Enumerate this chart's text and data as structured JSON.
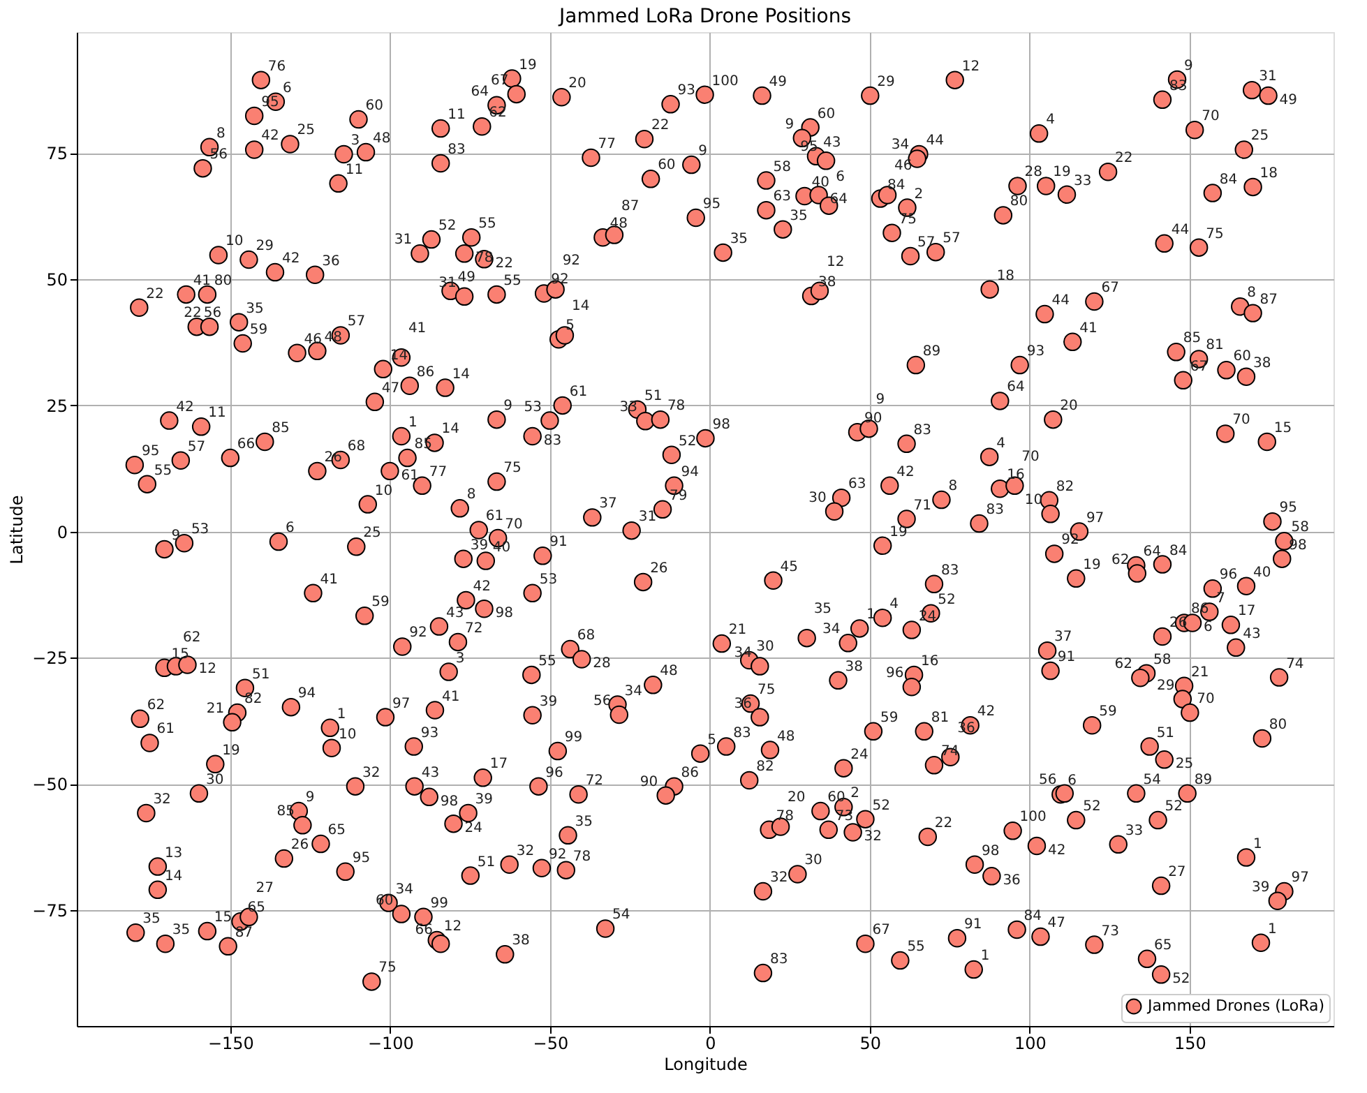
{
  "chart_data": {
    "type": "scatter",
    "title": "Jammed LoRa Drone Positions",
    "xlabel": "Longitude",
    "ylabel": "Latitude",
    "xlim": [
      -198,
      195
    ],
    "ylim": [
      -98,
      99
    ],
    "xticks": [
      -150,
      -100,
      -50,
      0,
      50,
      100,
      150
    ],
    "yticks": [
      -75,
      -50,
      -25,
      0,
      25,
      50,
      75
    ],
    "grid": true,
    "legend": "bottom right",
    "marker": "circle",
    "series": [
      {
        "name": "Jammed Drones (LoRa)",
        "color": "#fa8072",
        "x": [
          -140.4,
          -135.8,
          -142.5,
          -156.5,
          -158.6,
          -142.5,
          -131.3,
          -109.9,
          -114.5,
          -107.6,
          -116.2,
          -84.2,
          -84.2,
          -71.3,
          -61.9,
          -60.5,
          -66.7,
          -46.4,
          -12.3,
          -20.5,
          -37.2,
          -18.5,
          -5.8,
          -4.4,
          -33.5,
          -29.9,
          -87.1,
          -90.7,
          -74.6,
          -76.8,
          -70.6,
          -153.7,
          -144.2,
          -136.0,
          -123.5,
          -178.5,
          -163.8,
          -157.2,
          -160.5,
          -156.5,
          -147.3,
          -146.1,
          -129.1,
          -122.8,
          -115.5,
          -81.1,
          -76.8,
          -66.7,
          -51.9,
          -48.3,
          -47.3,
          -45.4,
          -102.2,
          -96.5,
          -104.8,
          -93.9,
          -82.8,
          -66.7,
          -46.1,
          -50.1,
          -55.5,
          -22.7,
          -20.2,
          -15.5,
          -12.0,
          -11.2,
          -14.8,
          -36.8,
          -24.5,
          -169.1,
          -159.1,
          -139.2,
          -150.0,
          -179.9,
          -165.5,
          -176.0,
          -122.8,
          -115.5,
          -96.5,
          -86.1,
          -94.6,
          -100.1,
          -107.0,
          -90.0,
          -66.7,
          -78.2,
          -72.3,
          -66.3,
          -170.6,
          -164.4,
          -134.9,
          -110.6,
          -77.1,
          -70.1,
          -52.3,
          -124.1,
          -108.0,
          -20.9,
          -55.5,
          -76.3,
          -70.6,
          -84.7,
          -96.2,
          -78.8,
          -170.6,
          -167.0,
          -163.4,
          -145.4,
          -147.8,
          -149.4,
          -131.0,
          -178.2,
          -175.2,
          -118.8,
          -118.3,
          -101.5,
          -86.0,
          -92.6,
          -81.7,
          -55.8,
          -43.7,
          -40.1,
          -17.8,
          -28.9,
          -28.4,
          -55.5,
          -47.6,
          -154.7,
          -159.8,
          -176.3,
          -110.9,
          -92.4,
          -87.8,
          -71.0,
          -53.6,
          -41.1,
          -11.2,
          -13.8,
          -3.0,
          -128.6,
          -127.4,
          -121.7,
          -133.2,
          -114.0,
          -75.6,
          -80.2,
          -44.4,
          -74.9,
          -62.7,
          -52.6,
          -45.0,
          -172.7,
          -172.7,
          -100.5,
          -96.5,
          -89.6,
          -85.4,
          -84.2,
          -64.1,
          -32.7,
          -105.8,
          -179.6,
          -170.3,
          -157.2,
          -150.7,
          -146.8,
          -144.2,
          -1.6,
          16.3,
          50.1,
          76.6,
          31.4,
          28.8,
          33.2,
          36.3,
          65.4,
          64.8,
          17.6,
          17.6,
          29.6,
          34.0,
          37.2,
          22.8,
          4.1,
          53.3,
          55.5,
          61.7,
          56.9,
          62.7,
          70.6,
          31.7,
          34.3,
          96.2,
          105.1,
          111.6,
          124.5,
          91.7,
          102.9,
          146.1,
          141.5,
          151.6,
          169.5,
          174.6,
          167.0,
          157.2,
          169.8,
          142.1,
          152.9,
          87.5,
          104.7,
          120.2,
          113.4,
          165.8,
          169.8,
          145.8,
          152.9,
          148.0,
          161.5,
          167.7,
          64.4,
          96.9,
          90.7,
          107.3,
          161.2,
          174.2,
          -1.4,
          46.1,
          49.7,
          61.5,
          87.4,
          41.1,
          38.9,
          56.2,
          72.4,
          61.5,
          90.7,
          95.3,
          106.1,
          106.5,
          84.2,
          115.5,
          175.9,
          179.6,
          178.9,
          54.0,
          107.7,
          114.5,
          133.3,
          133.6,
          141.5,
          19.8,
          70.1,
          69.1,
          63.1,
          54.0,
          46.8,
          43.2,
          30.3,
          3.7,
          12.3,
          15.6,
          40.1,
          63.8,
          63.1,
          12.7,
          15.6,
          51.1,
          67.0,
          81.4,
          70.1,
          75.2,
          5.1,
          18.8,
          12.3,
          41.8,
          34.6,
          41.8,
          37.1,
          18.5,
          22.1,
          48.6,
          44.7,
          68.1,
          94.7,
          102.2,
          82.8,
          88.1,
          27.4,
          16.6,
          16.6,
          48.6,
          59.5,
          77.3,
          82.5,
          96.0,
          103.4,
          120.2,
          136.7,
          141.1,
          172.3,
          179.6,
          177.5,
          167.7,
          141.1,
          127.7,
          140.1,
          114.5,
          133.3,
          149.3,
          109.7,
          110.9,
          119.5,
          137.5,
          142.1,
          172.7,
          178.0,
          148.3,
          147.8,
          150.1,
          136.5,
          134.6,
          141.5,
          148.3,
          150.9,
          156.2,
          157.2,
          167.7,
          162.9,
          164.5,
          105.5,
          106.5
        ],
        "values": [
          89.5,
          85.2,
          82.4,
          76.2,
          72.0,
          75.7,
          76.8,
          81.7,
          74.8,
          75.2,
          69.0,
          79.9,
          73.0,
          80.3,
          89.8,
          86.7,
          84.5,
          86.1,
          84.7,
          77.8,
          74.1,
          69.9,
          72.7,
          62.2,
          58.3,
          58.8,
          57.9,
          55.1,
          58.3,
          55.1,
          54.0,
          54.8,
          53.9,
          51.4,
          50.9,
          44.4,
          47.0,
          47.0,
          40.6,
          40.6,
          41.5,
          37.3,
          35.4,
          35.8,
          38.9,
          47.7,
          46.6,
          47.0,
          47.2,
          48.0,
          38.1,
          38.9,
          32.2,
          34.5,
          25.7,
          28.9,
          28.5,
          22.2,
          25.0,
          22.0,
          18.9,
          24.2,
          21.9,
          22.2,
          15.2,
          9.1,
          4.4,
          2.8,
          0.2,
          22.0,
          20.8,
          17.8,
          14.6,
          13.2,
          14.1,
          9.4,
          12.0,
          14.2,
          18.9,
          17.6,
          14.6,
          12.0,
          5.4,
          9.1,
          9.9,
          4.6,
          0.3,
          -1.3,
          -3.5,
          -2.3,
          -2.0,
          -3.0,
          -5.4,
          -5.8,
          -4.8,
          -12.2,
          -16.7,
          -10.0,
          -12.2,
          -13.6,
          -15.3,
          -18.8,
          -22.8,
          -21.9,
          -27.0,
          -26.7,
          -26.4,
          -31.0,
          -35.9,
          -37.8,
          -34.8,
          -37.1,
          -41.9,
          -38.9,
          -42.9,
          -36.8,
          -35.4,
          -42.6,
          -27.8,
          -28.4,
          -23.3,
          -25.3,
          -30.4,
          -34.3,
          -36.3,
          -36.4,
          -43.5,
          -46.1,
          -51.9,
          -55.8,
          -50.5,
          -50.5,
          -52.6,
          -48.8,
          -50.5,
          -52.1,
          -50.5,
          -52.3,
          -44.0,
          -55.4,
          -58.2,
          -61.9,
          -64.8,
          -67.4,
          -55.8,
          -57.9,
          -60.2,
          -68.2,
          -66.0,
          -66.7,
          -67.1,
          -66.4,
          -71.0,
          -73.6,
          -75.8,
          -76.4,
          -81.0,
          -81.7,
          -83.8,
          -78.7,
          -89.2,
          -79.5,
          -81.7,
          -79.2,
          -82.2,
          -77.3,
          -76.4,
          86.6,
          86.4,
          86.4,
          89.5,
          80.1,
          78.0,
          74.4,
          73.5,
          74.8,
          73.9,
          69.6,
          63.7,
          66.5,
          66.7,
          64.6,
          59.9,
          55.3,
          66.0,
          66.7,
          64.2,
          59.2,
          54.6,
          55.4,
          46.7,
          47.7,
          68.5,
          68.5,
          66.8,
          71.3,
          62.7,
          78.9,
          89.6,
          85.6,
          79.6,
          87.5,
          86.4,
          75.7,
          67.1,
          68.3,
          57.1,
          56.3,
          48.0,
          43.1,
          45.6,
          37.6,
          44.6,
          43.3,
          35.6,
          34.2,
          30.0,
          32.0,
          30.7,
          33.0,
          33.0,
          25.9,
          22.2,
          19.4,
          17.8,
          18.5,
          19.7,
          20.4,
          17.4,
          14.8,
          6.7,
          4.0,
          9.1,
          6.3,
          2.5,
          8.5,
          9.1,
          6.2,
          3.5,
          1.6,
          0.0,
          2.0,
          -1.9,
          -5.4,
          -2.8,
          -4.4,
          -9.3,
          -6.7,
          -8.3,
          -6.5,
          -9.7,
          -10.4,
          -16.2,
          -19.5,
          -17.1,
          -19.2,
          -22.1,
          -21.1,
          -22.2,
          -25.5,
          -26.7,
          -29.5,
          -28.4,
          -30.8,
          -34.1,
          -36.8,
          -39.6,
          -39.6,
          -38.4,
          -46.3,
          -44.7,
          -42.6,
          -43.3,
          -49.3,
          -46.9,
          -55.4,
          -54.6,
          -59.1,
          -59.1,
          -58.5,
          -57.0,
          -59.6,
          -60.5,
          -59.3,
          -62.3,
          -66.0,
          -68.3,
          -67.9,
          -71.3,
          -87.5,
          -81.7,
          -85.0,
          -80.6,
          -86.8,
          -78.9,
          -80.3,
          -81.9,
          -84.7,
          -87.8,
          -81.5,
          -71.3,
          -73.2,
          -64.6,
          -70.2,
          -62.0,
          -57.2,
          -57.2,
          -51.9,
          -51.9,
          -52.1,
          -51.9,
          -38.4,
          -42.6,
          -45.2,
          -41.0,
          -28.9,
          -30.6,
          -33.2,
          -35.9,
          -28.1,
          -29.0,
          -20.8,
          -18.1,
          -18.1,
          -15.9,
          -11.3,
          -10.8,
          -18.5,
          -23.0,
          -23.6,
          -27.6
        ]
      }
    ],
    "annotations": [
      {
        "text": "76",
        "x": -140.4,
        "y": 89.5
      },
      {
        "text": "6",
        "x": -135.8,
        "y": 85.2
      },
      {
        "text": "95",
        "x": -142.5,
        "y": 82.4
      },
      {
        "text": "8",
        "x": -156.5,
        "y": 76.2
      },
      {
        "text": "56",
        "x": -158.6,
        "y": 72.0
      },
      {
        "text": "42",
        "x": -142.5,
        "y": 75.7
      },
      {
        "text": "25",
        "x": -131.3,
        "y": 76.8
      },
      {
        "text": "60",
        "x": -109.9,
        "y": 81.7
      },
      {
        "text": "3",
        "x": -114.5,
        "y": 74.8
      },
      {
        "text": "48",
        "x": -107.6,
        "y": 75.2
      },
      {
        "text": "11",
        "x": -116.2,
        "y": 69.0
      },
      {
        "text": "11",
        "x": -84.2,
        "y": 79.9
      },
      {
        "text": "83",
        "x": -84.2,
        "y": 73.0
      },
      {
        "text": "62",
        "x": -71.3,
        "y": 80.3
      },
      {
        "text": "19",
        "x": -61.9,
        "y": 89.8
      },
      {
        "text": "67",
        "x": -60.5,
        "y": 86.7
      },
      {
        "text": "64",
        "x": -66.7,
        "y": 84.5
      },
      {
        "text": "20",
        "x": -46.4,
        "y": 86.1
      },
      {
        "text": "93",
        "x": -12.3,
        "y": 84.7
      },
      {
        "text": "22",
        "x": -20.5,
        "y": 77.8
      },
      {
        "text": "77",
        "x": -37.2,
        "y": 74.1
      },
      {
        "text": "60",
        "x": -18.5,
        "y": 69.9
      },
      {
        "text": "9",
        "x": -5.8,
        "y": 72.7
      },
      {
        "text": "95",
        "x": -4.4,
        "y": 62.2
      },
      {
        "text": "48",
        "x": -33.5,
        "y": 58.3
      },
      {
        "text": "87",
        "x": -29.9,
        "y": 58.8
      },
      {
        "text": "52",
        "x": -87.1,
        "y": 57.9
      },
      {
        "text": "31",
        "x": -90.7,
        "y": 55.1
      },
      {
        "text": "55",
        "x": -74.6,
        "y": 58.3
      },
      {
        "text": "78",
        "x": -76.8,
        "y": 55.1
      },
      {
        "text": "22",
        "x": -70.6,
        "y": 54.0
      },
      {
        "text": "10",
        "x": -153.7,
        "y": 54.8
      },
      {
        "text": "29",
        "x": -144.2,
        "y": 53.9
      },
      {
        "text": "42",
        "x": -136.0,
        "y": 51.4
      },
      {
        "text": "36",
        "x": -123.5,
        "y": 50.9
      },
      {
        "text": "22",
        "x": -178.5,
        "y": 44.4
      },
      {
        "text": "41",
        "x": -163.8,
        "y": 47.0
      },
      {
        "text": "80",
        "x": -157.2,
        "y": 47.0
      },
      {
        "text": "56",
        "x": -160.5,
        "y": 40.6
      },
      {
        "text": "22",
        "x": -156.5,
        "y": 40.6
      },
      {
        "text": "35",
        "x": -147.3,
        "y": 41.5
      },
      {
        "text": "59",
        "x": -146.1,
        "y": 37.3
      },
      {
        "text": "46",
        "x": -129.1,
        "y": 35.4
      },
      {
        "text": "48",
        "x": -122.8,
        "y": 35.8
      },
      {
        "text": "57",
        "x": -115.5,
        "y": 38.9
      },
      {
        "text": "49",
        "x": -81.1,
        "y": 47.7
      },
      {
        "text": "31",
        "x": -76.8,
        "y": 46.6
      },
      {
        "text": "55",
        "x": -66.7,
        "y": 47.0
      },
      {
        "text": "92",
        "x": -51.9,
        "y": 47.2
      },
      {
        "text": "92",
        "x": -48.3,
        "y": 48.0
      },
      {
        "text": "5",
        "x": -47.3,
        "y": 38.1
      },
      {
        "text": "14",
        "x": -45.4,
        "y": 38.9
      },
      {
        "text": "14",
        "x": -102.2,
        "y": 32.2
      },
      {
        "text": "41",
        "x": -96.5,
        "y": 34.5
      },
      {
        "text": "47",
        "x": -104.8,
        "y": 25.7
      },
      {
        "text": "86",
        "x": -93.9,
        "y": 28.9
      },
      {
        "text": "14",
        "x": -82.8,
        "y": 28.5
      },
      {
        "text": "9",
        "x": -66.7,
        "y": 22.2
      },
      {
        "text": "61",
        "x": -46.1,
        "y": 25.0
      },
      {
        "text": "53",
        "x": -50.1,
        "y": 22.0
      },
      {
        "text": "83",
        "x": -55.5,
        "y": 18.9
      },
      {
        "text": "51",
        "x": -22.7,
        "y": 24.2
      },
      {
        "text": "33",
        "x": -20.2,
        "y": 21.9
      },
      {
        "text": "78",
        "x": -15.5,
        "y": 22.2
      },
      {
        "text": "52",
        "x": -12.0,
        "y": 15.2
      },
      {
        "text": "94",
        "x": -11.2,
        "y": 9.1
      },
      {
        "text": "79",
        "x": -14.8,
        "y": 4.4
      },
      {
        "text": "37",
        "x": -36.8,
        "y": 2.8
      },
      {
        "text": "31",
        "x": -24.5,
        "y": 0.2
      },
      {
        "text": "42",
        "x": -169.1,
        "y": 22.0
      },
      {
        "text": "11",
        "x": -159.1,
        "y": 20.8
      },
      {
        "text": "85",
        "x": -139.2,
        "y": 17.8
      },
      {
        "text": "66",
        "x": -150.0,
        "y": 14.6
      },
      {
        "text": "95",
        "x": -179.9,
        "y": 13.2
      },
      {
        "text": "57",
        "x": -165.5,
        "y": 14.1
      },
      {
        "text": "55",
        "x": -176.0,
        "y": 9.4
      },
      {
        "text": "26",
        "x": -122.8,
        "y": 12.0
      },
      {
        "text": "68",
        "x": -115.5,
        "y": 14.2
      },
      {
        "text": "1",
        "x": -96.5,
        "y": 18.9
      },
      {
        "text": "14",
        "x": -86.1,
        "y": 17.6
      },
      {
        "text": "85",
        "x": -94.6,
        "y": 14.6
      },
      {
        "text": "61",
        "x": -100.1,
        "y": 12.0
      },
      {
        "text": "10",
        "x": -107.0,
        "y": 5.4
      },
      {
        "text": "77",
        "x": -90.0,
        "y": 9.1
      },
      {
        "text": "75",
        "x": -66.7,
        "y": 9.9
      },
      {
        "text": "8",
        "x": -78.2,
        "y": 4.6
      },
      {
        "text": "61",
        "x": -72.3,
        "y": 0.3
      },
      {
        "text": "70",
        "x": -66.3,
        "y": -1.3
      },
      {
        "text": "9",
        "x": -170.6,
        "y": -3.5
      },
      {
        "text": "53",
        "x": -164.4,
        "y": -2.3
      },
      {
        "text": "6",
        "x": -134.9,
        "y": -2.0
      },
      {
        "text": "25",
        "x": -110.6,
        "y": -3.0
      },
      {
        "text": "39",
        "x": -77.1,
        "y": -5.4
      },
      {
        "text": "40",
        "x": -70.1,
        "y": -5.8
      },
      {
        "text": "91",
        "x": -52.3,
        "y": -4.8
      },
      {
        "text": "41",
        "x": -124.1,
        "y": -12.2
      },
      {
        "text": "59",
        "x": -108.0,
        "y": -16.7
      },
      {
        "text": "26",
        "x": -20.9,
        "y": -10.0
      },
      {
        "text": "53",
        "x": -55.5,
        "y": -12.2
      },
      {
        "text": "42",
        "x": -76.3,
        "y": -13.6
      },
      {
        "text": "98",
        "x": -70.6,
        "y": -15.3
      },
      {
        "text": "43",
        "x": -84.7,
        "y": -18.8
      },
      {
        "text": "92",
        "x": -96.2,
        "y": -22.8
      },
      {
        "text": "72",
        "x": -78.8,
        "y": -21.9
      },
      {
        "text": "15",
        "x": -170.6,
        "y": -27.0
      },
      {
        "text": "62",
        "x": -167.0,
        "y": -26.7
      },
      {
        "text": "12",
        "x": -163.4,
        "y": -26.4
      },
      {
        "text": "51",
        "x": -145.4,
        "y": -31.0
      },
      {
        "text": "82",
        "x": -147.8,
        "y": -35.9
      },
      {
        "text": "21",
        "x": -149.4,
        "y": -37.8
      },
      {
        "text": "94",
        "x": -131.0,
        "y": -34.8
      },
      {
        "text": "62",
        "x": -178.2,
        "y": -37.1
      },
      {
        "text": "61",
        "x": -175.2,
        "y": -41.9
      },
      {
        "text": "1",
        "x": -118.8,
        "y": -38.9
      },
      {
        "text": "10",
        "x": -118.3,
        "y": -42.9
      },
      {
        "text": "97",
        "x": -101.5,
        "y": -36.8
      },
      {
        "text": "41",
        "x": -86.0,
        "y": -35.4
      },
      {
        "text": "93",
        "x": -92.6,
        "y": -42.6
      },
      {
        "text": "3",
        "x": -81.7,
        "y": -27.8
      },
      {
        "text": "55",
        "x": -55.8,
        "y": -28.4
      },
      {
        "text": "68",
        "x": -43.7,
        "y": -23.3
      },
      {
        "text": "28",
        "x": -40.1,
        "y": -25.3
      },
      {
        "text": "48",
        "x": -17.8,
        "y": -30.4
      },
      {
        "text": "34",
        "x": -28.9,
        "y": -34.3
      },
      {
        "text": "56",
        "x": -28.4,
        "y": -36.3
      },
      {
        "text": "39",
        "x": -55.5,
        "y": -36.4
      },
      {
        "text": "99",
        "x": -47.6,
        "y": -43.5
      },
      {
        "text": "19",
        "x": -154.7,
        "y": -46.1
      },
      {
        "text": "30",
        "x": -159.8,
        "y": -51.9
      },
      {
        "text": "32",
        "x": -176.3,
        "y": -55.8
      },
      {
        "text": "32",
        "x": -110.9,
        "y": -50.5
      },
      {
        "text": "43",
        "x": -92.4,
        "y": -50.5
      },
      {
        "text": "98",
        "x": -87.8,
        "y": -52.6
      },
      {
        "text": "17",
        "x": -71.0,
        "y": -48.8
      },
      {
        "text": "96",
        "x": -53.6,
        "y": -50.5
      },
      {
        "text": "72",
        "x": -41.1,
        "y": -52.1
      },
      {
        "text": "86",
        "x": -11.2,
        "y": -50.5
      },
      {
        "text": "90",
        "x": -13.8,
        "y": -52.3
      },
      {
        "text": "5",
        "x": -3.0,
        "y": -44.0
      },
      {
        "text": "9",
        "x": -128.6,
        "y": -55.4
      },
      {
        "text": "85",
        "x": -127.4,
        "y": -58.2
      },
      {
        "text": "65",
        "x": -121.7,
        "y": -61.9
      },
      {
        "text": "26",
        "x": -133.2,
        "y": -64.8
      },
      {
        "text": "95",
        "x": -114.0,
        "y": -67.4
      },
      {
        "text": "39",
        "x": -75.6,
        "y": -55.8
      },
      {
        "text": "24",
        "x": -80.2,
        "y": -57.9
      },
      {
        "text": "35",
        "x": -44.4,
        "y": -60.2
      },
      {
        "text": "51",
        "x": -74.9,
        "y": -68.2
      },
      {
        "text": "32",
        "x": -62.7,
        "y": -66.0
      },
      {
        "text": "92",
        "x": -52.6,
        "y": -66.7
      },
      {
        "text": "78",
        "x": -45.0,
        "y": -67.1
      },
      {
        "text": "13",
        "x": -172.7,
        "y": -66.4
      },
      {
        "text": "14",
        "x": -172.7,
        "y": -71.0
      },
      {
        "text": "34",
        "x": -100.5,
        "y": -73.6
      },
      {
        "text": "60",
        "x": -96.5,
        "y": -75.8
      },
      {
        "text": "99",
        "x": -89.6,
        "y": -76.4
      },
      {
        "text": "12",
        "x": -85.4,
        "y": -81.0
      },
      {
        "text": "66",
        "x": -84.2,
        "y": -81.7
      },
      {
        "text": "38",
        "x": -64.1,
        "y": -83.8
      },
      {
        "text": "54",
        "x": -32.7,
        "y": -78.7
      },
      {
        "text": "75",
        "x": -105.8,
        "y": -89.2
      },
      {
        "text": "35",
        "x": -179.6,
        "y": -79.5
      },
      {
        "text": "35",
        "x": -170.3,
        "y": -81.7
      },
      {
        "text": "15",
        "x": -157.2,
        "y": -79.2
      },
      {
        "text": "87",
        "x": -150.7,
        "y": -82.2
      },
      {
        "text": "65",
        "x": -146.8,
        "y": -77.3
      },
      {
        "text": "27",
        "x": -144.2,
        "y": -76.4
      },
      {
        "text": "100",
        "x": -1.6,
        "y": 86.6
      },
      {
        "text": "49",
        "x": 16.3,
        "y": 86.4
      },
      {
        "text": "29",
        "x": 50.1,
        "y": 86.4
      },
      {
        "text": "12",
        "x": 76.6,
        "y": 89.5
      },
      {
        "text": "60",
        "x": 31.4,
        "y": 80.1
      },
      {
        "text": "9",
        "x": 28.8,
        "y": 78.0
      },
      {
        "text": "43",
        "x": 33.2,
        "y": 74.4
      },
      {
        "text": "95",
        "x": 36.3,
        "y": 73.5
      },
      {
        "text": "44",
        "x": 65.4,
        "y": 74.8
      },
      {
        "text": "34",
        "x": 64.8,
        "y": 73.9
      },
      {
        "text": "58",
        "x": 17.6,
        "y": 69.6
      },
      {
        "text": "63",
        "x": 17.6,
        "y": 63.7
      },
      {
        "text": "40",
        "x": 29.6,
        "y": 66.5
      },
      {
        "text": "64",
        "x": 34.0,
        "y": 66.7
      },
      {
        "text": "6",
        "x": 37.2,
        "y": 64.6
      },
      {
        "text": "35",
        "x": 22.8,
        "y": 59.9
      },
      {
        "text": "35",
        "x": 4.1,
        "y": 55.3
      },
      {
        "text": "84",
        "x": 53.3,
        "y": 66.0
      },
      {
        "text": "46",
        "x": 55.5,
        "y": 66.7
      },
      {
        "text": "2",
        "x": 61.7,
        "y": 64.2
      },
      {
        "text": "75",
        "x": 56.9,
        "y": 59.2
      },
      {
        "text": "57",
        "x": 62.7,
        "y": 54.6
      },
      {
        "text": "57",
        "x": 70.6,
        "y": 55.4
      },
      {
        "text": "38",
        "x": 31.7,
        "y": 46.7
      },
      {
        "text": "12",
        "x": 34.3,
        "y": 47.7
      },
      {
        "text": "28",
        "x": 96.2,
        "y": 68.5
      },
      {
        "text": "19",
        "x": 105.1,
        "y": 68.5
      },
      {
        "text": "33",
        "x": 111.6,
        "y": 66.8
      },
      {
        "text": "22",
        "x": 124.5,
        "y": 71.3
      },
      {
        "text": "80",
        "x": 91.7,
        "y": 62.7
      },
      {
        "text": "4",
        "x": 102.9,
        "y": 78.9
      },
      {
        "text": "9",
        "x": 146.1,
        "y": 89.6
      },
      {
        "text": "83",
        "x": 141.5,
        "y": 85.6
      },
      {
        "text": "70",
        "x": 151.6,
        "y": 79.6
      },
      {
        "text": "31",
        "x": 169.5,
        "y": 87.5
      },
      {
        "text": "49",
        "x": 174.6,
        "y": 86.4
      },
      {
        "text": "25",
        "x": 167.0,
        "y": 75.7
      },
      {
        "text": "84",
        "x": 157.2,
        "y": 67.1
      },
      {
        "text": "18",
        "x": 169.8,
        "y": 68.3
      },
      {
        "text": "44",
        "x": 142.1,
        "y": 57.1
      },
      {
        "text": "75",
        "x": 152.9,
        "y": 56.3
      },
      {
        "text": "18",
        "x": 87.5,
        "y": 48.0
      },
      {
        "text": "44",
        "x": 104.7,
        "y": 43.1
      },
      {
        "text": "67",
        "x": 120.2,
        "y": 45.6
      },
      {
        "text": "41",
        "x": 113.4,
        "y": 37.6
      },
      {
        "text": "8",
        "x": 165.8,
        "y": 44.6
      },
      {
        "text": "87",
        "x": 169.8,
        "y": 43.3
      },
      {
        "text": "85",
        "x": 145.8,
        "y": 35.6
      },
      {
        "text": "81",
        "x": 152.9,
        "y": 34.2
      },
      {
        "text": "67",
        "x": 148.0,
        "y": 30.0
      },
      {
        "text": "60",
        "x": 161.5,
        "y": 32.0
      },
      {
        "text": "38",
        "x": 167.7,
        "y": 30.7
      },
      {
        "text": "89",
        "x": 64.4,
        "y": 33.0
      },
      {
        "text": "93",
        "x": 96.9,
        "y": 33.0
      },
      {
        "text": "64",
        "x": 90.7,
        "y": 25.9
      },
      {
        "text": "20",
        "x": 107.3,
        "y": 22.2
      },
      {
        "text": "70",
        "x": 161.2,
        "y": 19.4
      },
      {
        "text": "15",
        "x": 174.2,
        "y": 17.8
      },
      {
        "text": "98",
        "x": -1.4,
        "y": 18.5
      },
      {
        "text": "90",
        "x": 46.1,
        "y": 19.7
      },
      {
        "text": "9",
        "x": 49.7,
        "y": 20.4
      },
      {
        "text": "83",
        "x": 61.5,
        "y": 17.4
      },
      {
        "text": "4",
        "x": 87.4,
        "y": 14.8
      },
      {
        "text": "63",
        "x": 41.1,
        "y": 6.7
      },
      {
        "text": "30",
        "x": 38.9,
        "y": 4.0
      },
      {
        "text": "42",
        "x": 56.2,
        "y": 9.1
      },
      {
        "text": "8",
        "x": 72.4,
        "y": 6.3
      },
      {
        "text": "71",
        "x": 61.5,
        "y": 2.5
      },
      {
        "text": "16",
        "x": 90.7,
        "y": 8.5
      },
      {
        "text": "70",
        "x": 95.3,
        "y": 9.1
      },
      {
        "text": "82",
        "x": 106.1,
        "y": 6.2
      },
      {
        "text": "10",
        "x": 106.5,
        "y": 3.5
      },
      {
        "text": "83",
        "x": 84.2,
        "y": 1.6
      },
      {
        "text": "97",
        "x": 115.5,
        "y": 0.0
      },
      {
        "text": "95",
        "x": 175.9,
        "y": 2.0
      },
      {
        "text": "58",
        "x": 179.6,
        "y": -1.9
      },
      {
        "text": "98",
        "x": 178.9,
        "y": -5.4
      },
      {
        "text": "19",
        "x": 54.0,
        "y": -2.8
      },
      {
        "text": "92",
        "x": 107.7,
        "y": -4.4
      },
      {
        "text": "19",
        "x": 114.5,
        "y": -9.3
      },
      {
        "text": "64",
        "x": 133.3,
        "y": -6.7
      },
      {
        "text": "62",
        "x": 133.6,
        "y": -8.3
      },
      {
        "text": "84",
        "x": 141.5,
        "y": -6.5
      },
      {
        "text": "45",
        "x": 19.8,
        "y": -9.7
      },
      {
        "text": "83",
        "x": 70.1,
        "y": -10.4
      },
      {
        "text": "52",
        "x": 69.1,
        "y": -16.2
      },
      {
        "text": "24",
        "x": 63.1,
        "y": -19.5
      },
      {
        "text": "4",
        "x": 54.0,
        "y": -17.1
      },
      {
        "text": "1",
        "x": 46.8,
        "y": -19.2
      },
      {
        "text": "34",
        "x": 43.2,
        "y": -22.1
      },
      {
        "text": "35",
        "x": 30.3,
        "y": -21.1
      },
      {
        "text": "21",
        "x": 3.7,
        "y": -22.2
      },
      {
        "text": "30",
        "x": 12.3,
        "y": -25.5
      },
      {
        "text": "34",
        "x": 15.6,
        "y": -26.7
      },
      {
        "text": "38",
        "x": 40.1,
        "y": -29.5
      },
      {
        "text": "16",
        "x": 63.8,
        "y": -28.4
      },
      {
        "text": "96",
        "x": 63.1,
        "y": -30.8
      },
      {
        "text": "75",
        "x": 12.7,
        "y": -34.1
      },
      {
        "text": "36",
        "x": 15.6,
        "y": -36.8
      },
      {
        "text": "59",
        "x": 51.1,
        "y": -39.6
      },
      {
        "text": "81",
        "x": 67.0,
        "y": -39.6
      },
      {
        "text": "42",
        "x": 81.4,
        "y": -38.4
      },
      {
        "text": "74",
        "x": 70.1,
        "y": -46.3
      },
      {
        "text": "36",
        "x": 75.2,
        "y": -44.7
      },
      {
        "text": "83",
        "x": 5.1,
        "y": -42.6
      },
      {
        "text": "48",
        "x": 18.8,
        "y": -43.3
      },
      {
        "text": "82",
        "x": 12.3,
        "y": -49.3
      },
      {
        "text": "24",
        "x": 41.8,
        "y": -46.9
      },
      {
        "text": "60",
        "x": 34.6,
        "y": -55.4
      },
      {
        "text": "2",
        "x": 41.8,
        "y": -54.6
      },
      {
        "text": "73",
        "x": 37.1,
        "y": -59.1
      },
      {
        "text": "78",
        "x": 18.5,
        "y": -59.1
      },
      {
        "text": "20",
        "x": 22.1,
        "y": -58.5
      },
      {
        "text": "52",
        "x": 48.6,
        "y": -57.0
      },
      {
        "text": "32",
        "x": 44.7,
        "y": -59.6
      },
      {
        "text": "22",
        "x": 68.1,
        "y": -60.5
      },
      {
        "text": "100",
        "x": 94.7,
        "y": -59.3
      },
      {
        "text": "42",
        "x": 102.2,
        "y": -62.3
      },
      {
        "text": "98",
        "x": 82.8,
        "y": -66.0
      },
      {
        "text": "36",
        "x": 88.1,
        "y": -68.3
      },
      {
        "text": "30",
        "x": 27.4,
        "y": -67.9
      },
      {
        "text": "32",
        "x": 16.6,
        "y": -71.3
      },
      {
        "text": "83",
        "x": 16.6,
        "y": -87.5
      },
      {
        "text": "67",
        "x": 48.6,
        "y": -81.7
      },
      {
        "text": "55",
        "x": 59.5,
        "y": -85.0
      },
      {
        "text": "91",
        "x": 77.3,
        "y": -80.6
      },
      {
        "text": "1",
        "x": 82.5,
        "y": -86.8
      },
      {
        "text": "84",
        "x": 96.0,
        "y": -78.9
      },
      {
        "text": "47",
        "x": 103.4,
        "y": -80.3
      },
      {
        "text": "73",
        "x": 120.2,
        "y": -81.9
      },
      {
        "text": "65",
        "x": 136.7,
        "y": -84.7
      },
      {
        "text": "52",
        "x": 141.1,
        "y": -87.8
      },
      {
        "text": "1",
        "x": 172.3,
        "y": -81.5
      },
      {
        "text": "97",
        "x": 179.6,
        "y": -71.3
      },
      {
        "text": "39",
        "x": 177.5,
        "y": -73.2
      },
      {
        "text": "1",
        "x": 167.7,
        "y": -64.6
      },
      {
        "text": "27",
        "x": 141.1,
        "y": -70.2
      },
      {
        "text": "33",
        "x": 127.7,
        "y": -62.0
      },
      {
        "text": "52",
        "x": 140.1,
        "y": -57.2
      },
      {
        "text": "52",
        "x": 114.5,
        "y": -57.2
      },
      {
        "text": "54",
        "x": 133.3,
        "y": -51.9
      },
      {
        "text": "89",
        "x": 149.3,
        "y": -51.9
      },
      {
        "text": "6",
        "x": 109.7,
        "y": -52.1
      },
      {
        "text": "56",
        "x": 110.9,
        "y": -51.9
      },
      {
        "text": "59",
        "x": 119.5,
        "y": -38.4
      },
      {
        "text": "51",
        "x": 137.5,
        "y": -42.6
      },
      {
        "text": "25",
        "x": 142.1,
        "y": -45.2
      },
      {
        "text": "80",
        "x": 172.7,
        "y": -41.0
      },
      {
        "text": "74",
        "x": 178.0,
        "y": -28.9
      },
      {
        "text": "21",
        "x": 148.3,
        "y": -30.6
      },
      {
        "text": "29",
        "x": 147.8,
        "y": -33.2
      },
      {
        "text": "70",
        "x": 150.1,
        "y": -35.9
      },
      {
        "text": "58",
        "x": 136.5,
        "y": -28.1
      },
      {
        "text": "62",
        "x": 134.6,
        "y": -29.0
      },
      {
        "text": "26",
        "x": 141.5,
        "y": -20.8
      },
      {
        "text": "86",
        "x": 148.3,
        "y": -18.1
      },
      {
        "text": "6",
        "x": 150.9,
        "y": -18.1
      },
      {
        "text": "7",
        "x": 156.2,
        "y": -15.9
      },
      {
        "text": "96",
        "x": 157.2,
        "y": -11.3
      },
      {
        "text": "40",
        "x": 167.7,
        "y": -10.8
      },
      {
        "text": "17",
        "x": 162.9,
        "y": -18.5
      },
      {
        "text": "43",
        "x": 164.5,
        "y": -23.0
      },
      {
        "text": "37",
        "x": 105.5,
        "y": -23.6
      },
      {
        "text": "91",
        "x": 106.5,
        "y": -27.6
      }
    ]
  }
}
